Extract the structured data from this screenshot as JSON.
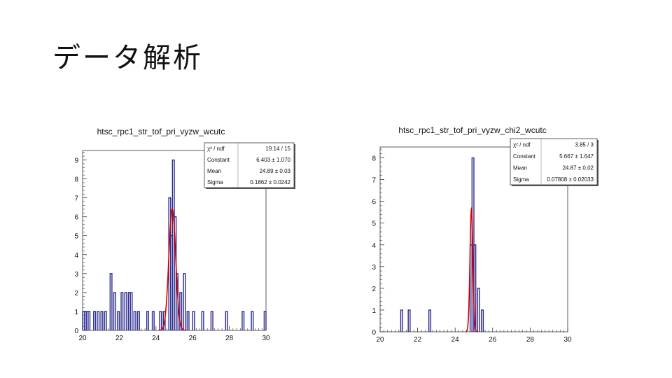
{
  "slide": {
    "title": "データ解析"
  },
  "chart_data": [
    {
      "type": "histogram",
      "title": "htsc_rpc1_str_tof_pri_vyzw_wcutc",
      "xlim": [
        20,
        30
      ],
      "ylim": [
        0,
        9.5
      ],
      "x_ticks": [
        "20",
        "22",
        "24",
        "26",
        "28",
        "30"
      ],
      "y_ticks": [
        "0",
        "1",
        "2",
        "3",
        "4",
        "5",
        "6",
        "7",
        "8",
        "9"
      ],
      "bin_width": 0.1,
      "histogram": [
        {
          "x": 20.0,
          "count": 1
        },
        {
          "x": 20.1,
          "count": 1
        },
        {
          "x": 20.2,
          "count": 1
        },
        {
          "x": 20.3,
          "count": 1
        },
        {
          "x": 20.6,
          "count": 1
        },
        {
          "x": 20.8,
          "count": 1
        },
        {
          "x": 21.0,
          "count": 1
        },
        {
          "x": 21.2,
          "count": 1
        },
        {
          "x": 21.5,
          "count": 3
        },
        {
          "x": 21.7,
          "count": 2
        },
        {
          "x": 21.9,
          "count": 1
        },
        {
          "x": 22.1,
          "count": 2
        },
        {
          "x": 22.3,
          "count": 2
        },
        {
          "x": 22.5,
          "count": 2
        },
        {
          "x": 22.6,
          "count": 2
        },
        {
          "x": 22.8,
          "count": 1
        },
        {
          "x": 23.0,
          "count": 1
        },
        {
          "x": 23.5,
          "count": 1
        },
        {
          "x": 23.8,
          "count": 1
        },
        {
          "x": 24.2,
          "count": 1
        },
        {
          "x": 24.4,
          "count": 1
        },
        {
          "x": 24.7,
          "count": 7
        },
        {
          "x": 24.8,
          "count": 5
        },
        {
          "x": 24.9,
          "count": 9
        },
        {
          "x": 25.0,
          "count": 6
        },
        {
          "x": 25.1,
          "count": 3
        },
        {
          "x": 25.3,
          "count": 2
        },
        {
          "x": 25.5,
          "count": 3
        },
        {
          "x": 25.7,
          "count": 1
        },
        {
          "x": 26.0,
          "count": 1
        },
        {
          "x": 26.5,
          "count": 1
        },
        {
          "x": 27.0,
          "count": 1
        },
        {
          "x": 27.8,
          "count": 1
        },
        {
          "x": 28.7,
          "count": 1
        },
        {
          "x": 29.2,
          "count": 1
        },
        {
          "x": 29.9,
          "count": 1
        }
      ],
      "fit": {
        "function": "gaus",
        "constant": 6.403,
        "mean": 24.89,
        "sigma": 0.1862,
        "color": "#dd0000"
      },
      "stats": [
        {
          "label": "χ² / ndf",
          "value": "19.14 / 15"
        },
        {
          "label": "Constant",
          "value": "6.403 ± 1.070"
        },
        {
          "label": "Mean",
          "value": "24.89 ± 0.03"
        },
        {
          "label": "Sigma",
          "value": "0.1862 ± 0.0242"
        }
      ],
      "line_color": "#2b2b8f"
    },
    {
      "type": "histogram",
      "title": "htsc_rpc1_str_tof_pri_vyzw_chi2_wcutc",
      "xlim": [
        20,
        30
      ],
      "ylim": [
        0,
        8.5
      ],
      "x_ticks": [
        "20",
        "22",
        "24",
        "26",
        "28",
        "30"
      ],
      "y_ticks": [
        "0",
        "1",
        "2",
        "3",
        "4",
        "5",
        "6",
        "7",
        "8"
      ],
      "bin_width": 0.1,
      "histogram": [
        {
          "x": 21.1,
          "count": 1
        },
        {
          "x": 21.5,
          "count": 1
        },
        {
          "x": 22.6,
          "count": 1
        },
        {
          "x": 24.8,
          "count": 4
        },
        {
          "x": 24.9,
          "count": 8
        },
        {
          "x": 25.0,
          "count": 4
        },
        {
          "x": 25.2,
          "count": 2
        },
        {
          "x": 25.4,
          "count": 1
        }
      ],
      "fit": {
        "function": "gaus",
        "constant": 5.667,
        "mean": 24.87,
        "sigma": 0.07808,
        "color": "#dd0000"
      },
      "stats": [
        {
          "label": "χ² / ndf",
          "value": "3.85 / 3"
        },
        {
          "label": "Constant",
          "value": "5.667 ± 1.647"
        },
        {
          "label": "Mean",
          "value": "24.87 ± 0.02"
        },
        {
          "label": "Sigma",
          "value": "0.07808 ± 0.02033"
        }
      ],
      "line_color": "#2b2b8f"
    }
  ]
}
